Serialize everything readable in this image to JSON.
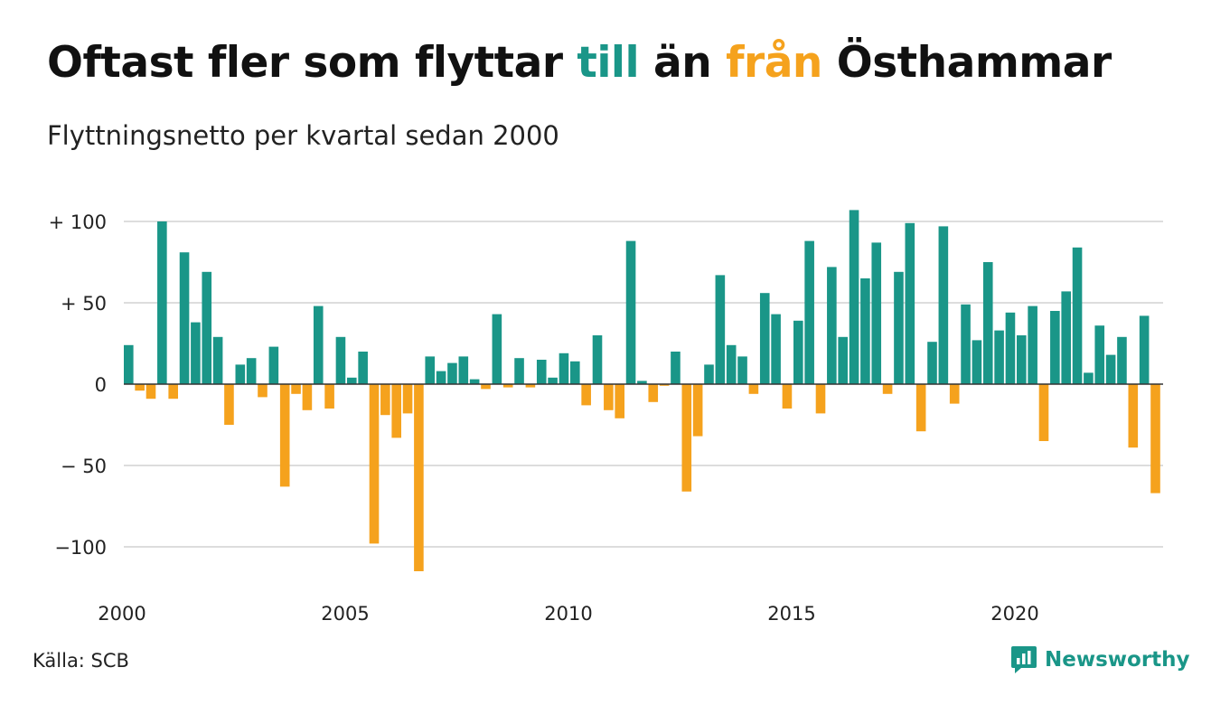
{
  "header": {
    "title_part1": "Oftast fler som flyttar ",
    "title_till": "till",
    "title_part2": " än ",
    "title_fran": "från",
    "title_part3": " Östhammar",
    "subtitle": "Flyttningsnetto per kvartal sedan 2000"
  },
  "colors": {
    "positive": "#1a9688",
    "negative": "#f5a21d",
    "grid": "#dddddd"
  },
  "chart_data": {
    "type": "bar",
    "title": "Oftast fler som flyttar till än från Östhammar",
    "subtitle": "Flyttningsnetto per kvartal sedan 2000",
    "xlabel": "",
    "ylabel": "",
    "ylim": [
      -115,
      107
    ],
    "x_start": "2000 Q1",
    "y_ticks": [
      {
        "value": 100,
        "label": "+ 100"
      },
      {
        "value": 50,
        "label": "+  50"
      },
      {
        "value": 0,
        "label": "0"
      },
      {
        "value": -50,
        "label": "− 50"
      },
      {
        "value": -100,
        "label": "−100"
      }
    ],
    "x_ticks": [
      {
        "index": 0,
        "label": "2000"
      },
      {
        "index": 20,
        "label": "2005"
      },
      {
        "index": 40,
        "label": "2010"
      },
      {
        "index": 60,
        "label": "2015"
      },
      {
        "index": 80,
        "label": "2020"
      }
    ],
    "grid": true,
    "legend": "none",
    "values": [
      24,
      -4,
      -9,
      100,
      -9,
      81,
      38,
      69,
      29,
      -25,
      12,
      16,
      -8,
      23,
      -63,
      -6,
      -16,
      48,
      -15,
      29,
      4,
      20,
      -98,
      -19,
      -33,
      -18,
      -115,
      17,
      8,
      13,
      17,
      3,
      -3,
      43,
      -2,
      16,
      -2,
      15,
      4,
      19,
      14,
      -13,
      30,
      -16,
      -21,
      88,
      2,
      -11,
      -1,
      20,
      -66,
      -32,
      12,
      67,
      24,
      17,
      -6,
      56,
      43,
      -15,
      39,
      88,
      -18,
      72,
      29,
      107,
      65,
      87,
      -6,
      69,
      99,
      -29,
      26,
      97,
      -12,
      49,
      27,
      75,
      33,
      44,
      30,
      48,
      -35,
      45,
      57,
      84,
      7,
      36,
      18,
      29,
      -39,
      42,
      -67
    ]
  },
  "footer": {
    "source": "Källa: SCB",
    "logo_text": "Newsworthy"
  }
}
